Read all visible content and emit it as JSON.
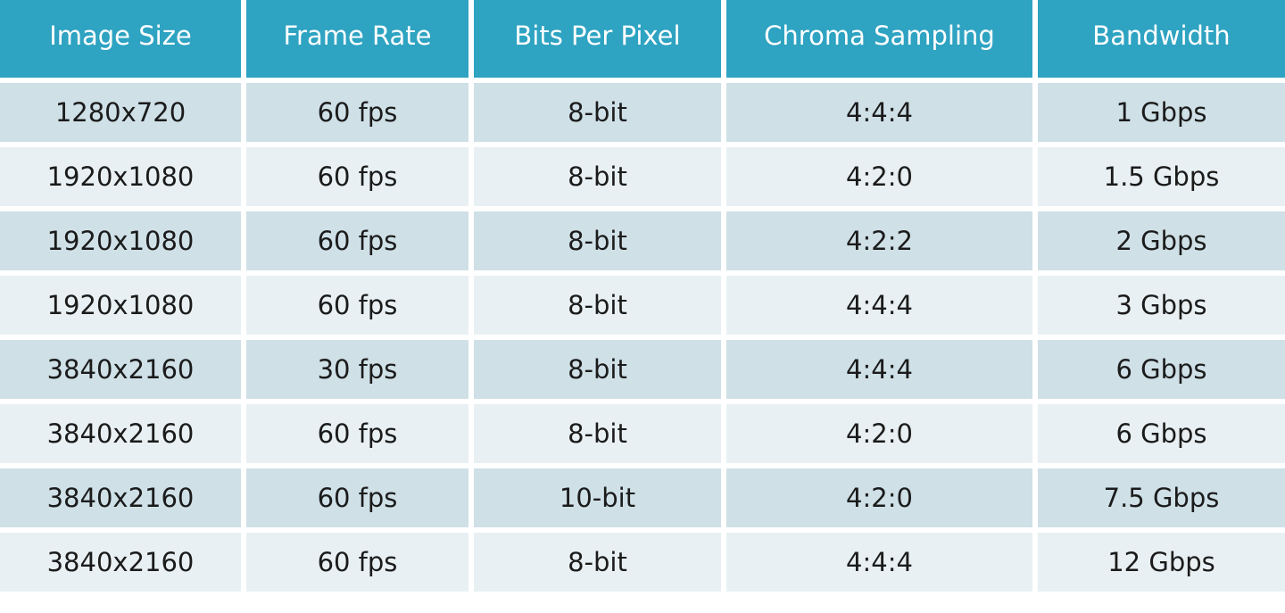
{
  "table": {
    "header": [
      "Image Size",
      "Frame Rate",
      "Bits Per Pixel",
      "Chroma Sampling",
      "Bandwidth"
    ],
    "rows": [
      [
        "1280x720",
        "60 fps",
        "8-bit",
        "4:4:4",
        "1 Gbps"
      ],
      [
        "1920x1080",
        "60 fps",
        "8-bit",
        "4:2:0",
        "1.5 Gbps"
      ],
      [
        "1920x1080",
        "60 fps",
        "8-bit",
        "4:2:2",
        "2 Gbps"
      ],
      [
        "1920x1080",
        "60 fps",
        "8-bit",
        "4:4:4",
        "3 Gbps"
      ],
      [
        "3840x2160",
        "30 fps",
        "8-bit",
        "4:4:4",
        "6 Gbps"
      ],
      [
        "3840x2160",
        "60 fps",
        "8-bit",
        "4:2:0",
        "6 Gbps"
      ],
      [
        "3840x2160",
        "60 fps",
        "10-bit",
        "4:2:0",
        "7.5 Gbps"
      ],
      [
        "3840x2160",
        "60 fps",
        "8-bit",
        "4:4:4",
        "12 Gbps"
      ]
    ]
  }
}
